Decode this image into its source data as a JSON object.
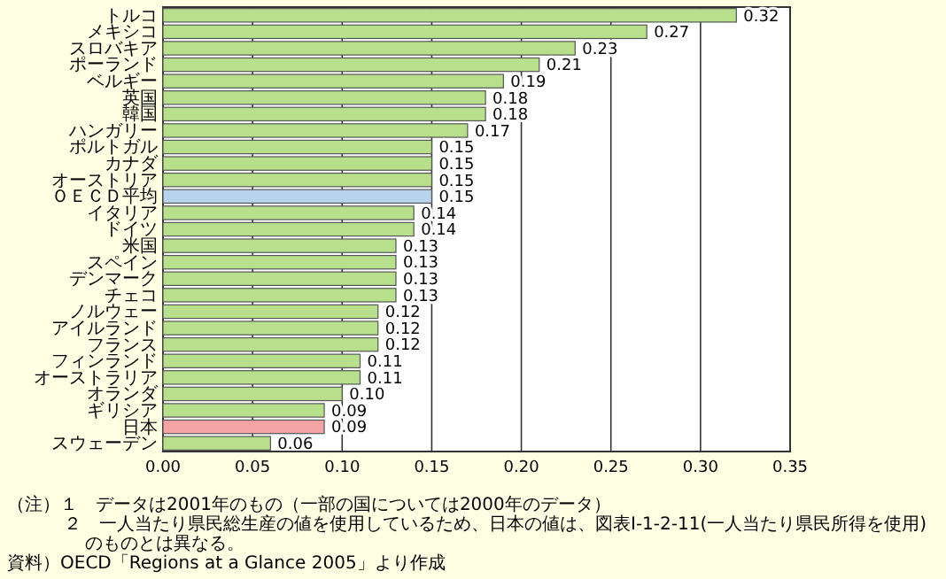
{
  "chart_data": {
    "type": "bar",
    "orientation": "horizontal",
    "categories": [
      "トルコ",
      "メキシコ",
      "スロバキア",
      "ポーランド",
      "ベルギー",
      "英国",
      "韓国",
      "ハンガリー",
      "ポルトガル",
      "カナダ",
      "オーストリア",
      "ＯＥＣＤ平均",
      "イタリア",
      "ドイツ",
      "米国",
      "スペイン",
      "デンマーク",
      "チェコ",
      "ノルウェー",
      "アイルランド",
      "フランス",
      "フィンランド",
      "オーストラリア",
      "オランダ",
      "ギリシア",
      "日本",
      "スウェーデン"
    ],
    "values": [
      0.32,
      0.27,
      0.23,
      0.21,
      0.19,
      0.18,
      0.18,
      0.17,
      0.15,
      0.15,
      0.15,
      0.15,
      0.14,
      0.14,
      0.13,
      0.13,
      0.13,
      0.13,
      0.12,
      0.12,
      0.12,
      0.11,
      0.11,
      0.1,
      0.09,
      0.09,
      0.06
    ],
    "colors": [
      "#b8e08c",
      "#b8e08c",
      "#b8e08c",
      "#b8e08c",
      "#b8e08c",
      "#b8e08c",
      "#b8e08c",
      "#b8e08c",
      "#b8e08c",
      "#b8e08c",
      "#b8e08c",
      "#b8d4ec",
      "#b8e08c",
      "#b8e08c",
      "#b8e08c",
      "#b8e08c",
      "#b8e08c",
      "#b8e08c",
      "#b8e08c",
      "#b8e08c",
      "#b8e08c",
      "#b8e08c",
      "#b8e08c",
      "#b8e08c",
      "#b8e08c",
      "#f4a4a4",
      "#b8e08c"
    ],
    "xlim": [
      0,
      0.35
    ],
    "xticks": [
      {
        "value": 0,
        "label": "0.00"
      },
      {
        "value": 0.05,
        "label": "0.05"
      },
      {
        "value": 0.1,
        "label": "0.10"
      },
      {
        "value": 0.15,
        "label": "0.15"
      },
      {
        "value": 0.2,
        "label": "0.20"
      },
      {
        "value": 0.25,
        "label": "0.25"
      },
      {
        "value": 0.3,
        "label": "0.30"
      },
      {
        "value": 0.35,
        "label": "0.35"
      }
    ],
    "grid": "x",
    "value_labels": [
      "0.32",
      "0.27",
      "0.23",
      "0.21",
      "0.19",
      "0.18",
      "0.18",
      "0.17",
      "0.15",
      "0.15",
      "0.15",
      "0.15",
      "0.14",
      "0.14",
      "0.13",
      "0.13",
      "0.13",
      "0.13",
      "0.12",
      "0.12",
      "0.12",
      "0.11",
      "0.11",
      "0.10",
      "0.09",
      "0.09",
      "0.06"
    ],
    "annotations": [
      "（注）１　データは2001年のもの（一部の国については2000年のデータ）",
      "２　一人当たり県民総生産の値を使用しているため、日本の値は、図表Ⅰ-1-2-11(一人当たり県民所得を使用)のものとは異なる。",
      "資料）OECD「Regions at a Glance 2005」より作成"
    ]
  }
}
